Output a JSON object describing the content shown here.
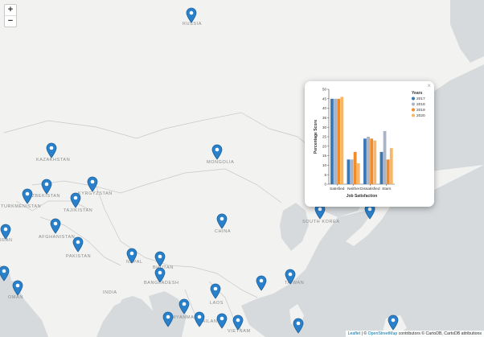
{
  "map": {
    "zoom_in_label": "+",
    "zoom_out_label": "−",
    "attribution": {
      "leaflet": "Leaflet",
      "sep": " | © ",
      "osm": "OpenStreetMap",
      "rest": " contributors © CartoDB, CartoDB attributions"
    },
    "labels": {
      "russia": "RUSSIA",
      "kazakhstan": "KAZAKHSTAN",
      "mongolia": "MONGOLIA",
      "uzbekistan": "UZBEKISTAN",
      "kyrgyzstan": "KYRGYZSTAN",
      "turkmenistan": "TURKMENISTAN",
      "tajikistan": "TAJIKISTAN",
      "afghanistan": "AFGHANISTAN",
      "iran": "IRAN",
      "pakistan": "PAKISTAN",
      "nepal": "NEPAL",
      "bhutan": "BHUTAN",
      "bangladesh": "BANGLADESH",
      "india": "INDIA",
      "china": "CHINA",
      "south_korea": "SOUTH KOREA",
      "taiwan": "TAIWAN",
      "laos": "LAOS",
      "thailand": "THAILAND",
      "vietnam": "VIETNAM",
      "myanmar": "MYANMAR",
      "oman": "OMAN"
    },
    "marker_color": "#2a81cb"
  },
  "chart_data": {
    "type": "bar",
    "categories": [
      "Satisfied",
      "Neither",
      "Dissatisfied",
      "Stars"
    ],
    "series": [
      {
        "name": "2017",
        "color": "#3a78b4",
        "values": [
          45,
          13,
          24,
          17
        ]
      },
      {
        "name": "2018",
        "color": "#aab4c8",
        "values": [
          45,
          13,
          25,
          28
        ]
      },
      {
        "name": "2019",
        "color": "#f28c28",
        "values": [
          45,
          17,
          24,
          13
        ]
      },
      {
        "name": "2020",
        "color": "#f7b66a",
        "values": [
          46,
          11,
          23,
          19
        ]
      }
    ],
    "xlabel": "Job Satisfaction",
    "ylabel": "Percentage Score",
    "ylim": [
      0,
      50
    ],
    "yticks": [
      0,
      5,
      10,
      15,
      20,
      25,
      30,
      35,
      40,
      45,
      50
    ],
    "legend_title": "Years",
    "legend_position": "top-right",
    "grid": false
  },
  "popup": {
    "close_label": "×"
  }
}
